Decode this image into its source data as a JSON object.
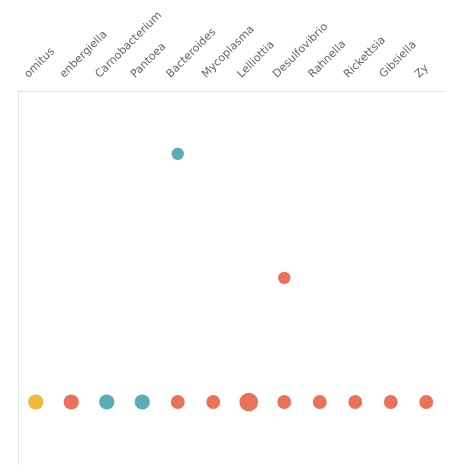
{
  "chart_data": {
    "type": "scatter",
    "categories": [
      "omitus",
      "enbergiella",
      "Carnobacterium",
      "Pantoea",
      "Bacteroides",
      "Mycoplasma",
      "Lelliottia",
      "Desulfovibrio",
      "Rahnella",
      "Rickettsia",
      "Gibsiella",
      "Zy"
    ],
    "series": [
      {
        "x": [
          "Bacteroides",
          "Desulfovibrio",
          "omitus",
          "enbergiella",
          "Carnobacterium",
          "Pantoea",
          "Bacteroides",
          "Mycoplasma",
          "Lelliottia",
          "Desulfovibrio",
          "Rahnella",
          "Rickettsia",
          "Gibsiella",
          "Zy"
        ],
        "values": [
          2,
          1,
          0,
          0,
          0,
          0,
          0,
          0,
          0,
          0,
          0,
          0,
          0,
          0
        ],
        "colors": [
          "#5aacb5",
          "#e8735a",
          "#f0b840",
          "#e8735a",
          "#5aacb5",
          "#5aacb5",
          "#e8735a",
          "#e8735a",
          "#e8735a",
          "#e8735a",
          "#e8735a",
          "#e8735a",
          "#e8735a",
          "#e8735a"
        ],
        "sizes": [
          80,
          80,
          120,
          120,
          120,
          120,
          100,
          100,
          180,
          100,
          100,
          100,
          100,
          100
        ]
      }
    ],
    "ylim": [
      -0.5,
      2.5
    ],
    "yticks": [],
    "tick_labels": "x",
    "grid": false
  }
}
